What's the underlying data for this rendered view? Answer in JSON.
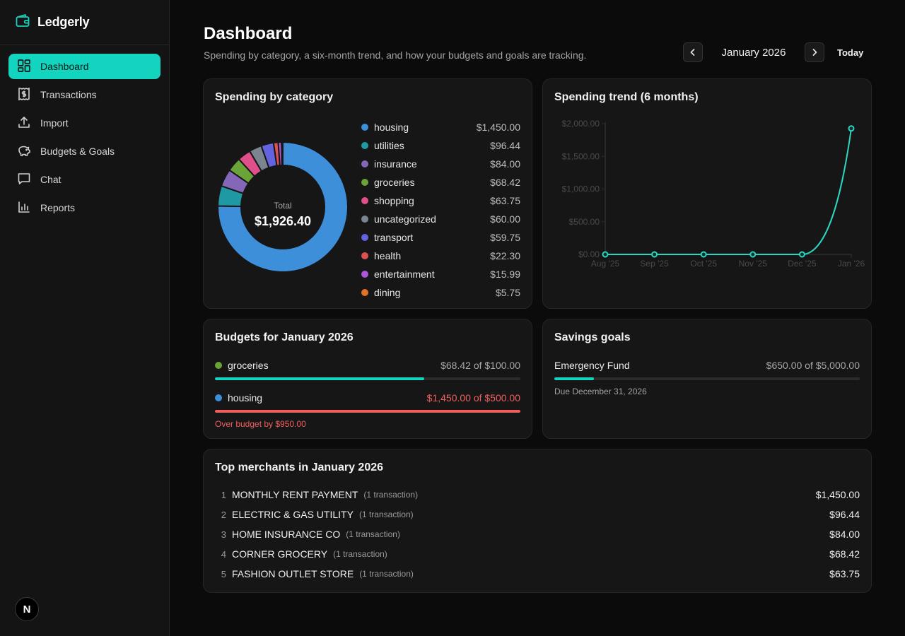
{
  "app": {
    "name": "Ledgerly"
  },
  "sidebar": {
    "items": [
      {
        "label": "Dashboard",
        "icon": "dashboard-grid-icon",
        "active": true
      },
      {
        "label": "Transactions",
        "icon": "receipt-dollar-icon",
        "active": false
      },
      {
        "label": "Import",
        "icon": "upload-icon",
        "active": false
      },
      {
        "label": "Budgets & Goals",
        "icon": "piggy-bank-icon",
        "active": false
      },
      {
        "label": "Chat",
        "icon": "chat-bubble-icon",
        "active": false
      },
      {
        "label": "Reports",
        "icon": "bar-chart-icon",
        "active": false
      }
    ],
    "avatar_letter": "N"
  },
  "header": {
    "title": "Dashboard",
    "subtitle": "Spending by category, a six-month trend, and how your budgets and goals are tracking.",
    "month": "January 2026",
    "today_label": "Today"
  },
  "spending_by_category": {
    "title": "Spending by category",
    "total_label": "Total",
    "total_value": "$1,926.40",
    "items": [
      {
        "label": "housing",
        "value": "$1,450.00",
        "color": "#3d8fd9"
      },
      {
        "label": "utilities",
        "value": "$96.44",
        "color": "#1f9aa5"
      },
      {
        "label": "insurance",
        "value": "$84.00",
        "color": "#8467b8"
      },
      {
        "label": "groceries",
        "value": "$68.42",
        "color": "#6aa338"
      },
      {
        "label": "shopping",
        "value": "$63.75",
        "color": "#df4f8a"
      },
      {
        "label": "uncategorized",
        "value": "$60.00",
        "color": "#7a8590"
      },
      {
        "label": "transport",
        "value": "$59.75",
        "color": "#6363e0"
      },
      {
        "label": "health",
        "value": "$22.30",
        "color": "#dd5050"
      },
      {
        "label": "entertainment",
        "value": "$15.99",
        "color": "#b055d6"
      },
      {
        "label": "dining",
        "value": "$5.75",
        "color": "#e07127"
      }
    ]
  },
  "chart_data": [
    {
      "type": "pie",
      "title": "Spending by category",
      "categories": [
        "housing",
        "utilities",
        "insurance",
        "groceries",
        "shopping",
        "uncategorized",
        "transport",
        "health",
        "entertainment",
        "dining"
      ],
      "values": [
        1450.0,
        96.44,
        84.0,
        68.42,
        63.75,
        60.0,
        59.75,
        22.3,
        15.99,
        5.75
      ],
      "total": 1926.4
    },
    {
      "type": "line",
      "title": "Spending trend (6 months)",
      "x": [
        "Aug '25",
        "Sep '25",
        "Oct '25",
        "Nov '25",
        "Dec '25",
        "Jan '26"
      ],
      "values": [
        0,
        0,
        0,
        0,
        0,
        1926.4
      ],
      "ylim": [
        0,
        2000
      ],
      "yticks": [
        "$0.00",
        "$500.00",
        "$1,000.00",
        "$1,500.00",
        "$2,000.00"
      ],
      "color": "#2dd4bf",
      "grid": false
    }
  ],
  "trend": {
    "title": "Spending trend (6 months)"
  },
  "budgets": {
    "title": "Budgets for January 2026",
    "items": [
      {
        "label": "groceries",
        "amount": "$68.42 of $100.00",
        "fraction": 0.6842,
        "dot_color": "#6aa338",
        "bar_color": "#13d4be",
        "over": false
      },
      {
        "label": "housing",
        "amount": "$1,450.00 of $500.00",
        "fraction": 1.0,
        "dot_color": "#3d8fd9",
        "bar_color": "#f25e5e",
        "over": true,
        "over_note": "Over budget by $950.00"
      }
    ]
  },
  "savings": {
    "title": "Savings goals",
    "goal_name": "Emergency Fund",
    "amount": "$650.00 of $5,000.00",
    "fraction": 0.13,
    "due": "Due December 31, 2026",
    "bar_color": "#13d4be"
  },
  "merchants": {
    "title": "Top merchants in January 2026",
    "items": [
      {
        "rank": "1",
        "name": "MONTHLY RENT PAYMENT",
        "count": "(1 transaction)",
        "amount": "$1,450.00"
      },
      {
        "rank": "2",
        "name": "ELECTRIC & GAS UTILITY",
        "count": "(1 transaction)",
        "amount": "$96.44"
      },
      {
        "rank": "3",
        "name": "HOME INSURANCE CO",
        "count": "(1 transaction)",
        "amount": "$84.00"
      },
      {
        "rank": "4",
        "name": "CORNER GROCERY",
        "count": "(1 transaction)",
        "amount": "$68.42"
      },
      {
        "rank": "5",
        "name": "FASHION OUTLET STORE",
        "count": "(1 transaction)",
        "amount": "$63.75"
      }
    ]
  }
}
